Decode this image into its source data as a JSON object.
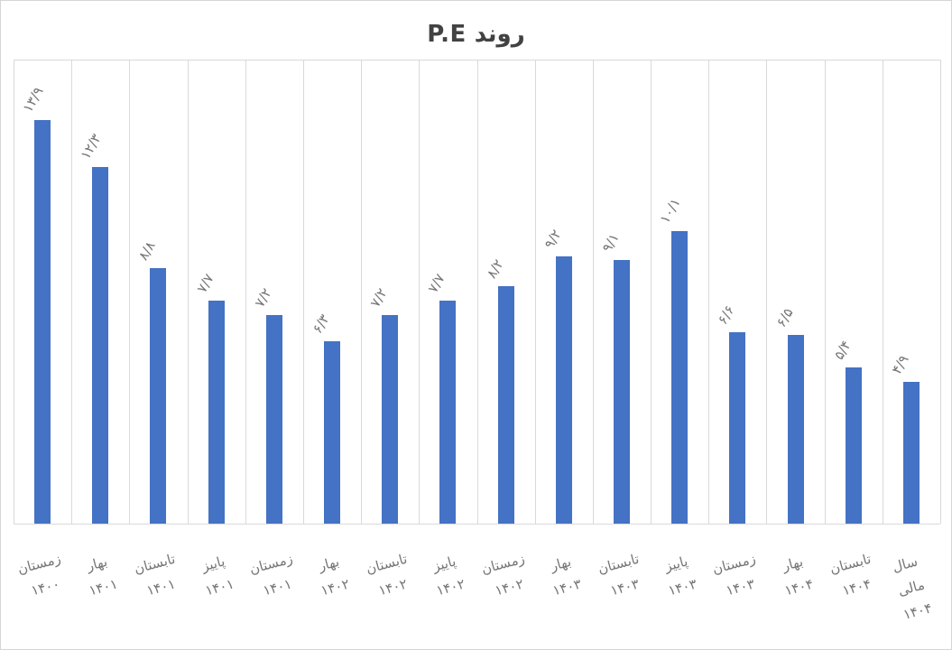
{
  "chart_data": {
    "type": "bar",
    "title": "روند P.E",
    "xlabel": "",
    "ylabel": "",
    "legend": "none",
    "grid": "vertical-category-separators",
    "ylim": [
      0,
      16
    ],
    "categories": [
      "زمستان ۱۴۰۰",
      "بهار ۱۴۰۱",
      "تابستان ۱۴۰۱",
      "پاییز ۱۴۰۱",
      "زمستان ۱۴۰۱",
      "بهار ۱۴۰۲",
      "تابستان ۱۴۰۲",
      "پاییز ۱۴۰۲",
      "زمستان ۱۴۰۲",
      "بهار ۱۴۰۳",
      "تابستان ۱۴۰۳",
      "پاییز ۱۴۰۳",
      "زمستان ۱۴۰۳",
      "بهار ۱۴۰۴",
      "تابستان ۱۴۰۴",
      "سال مالی ۱۴۰۴"
    ],
    "category_lines": [
      [
        "زمستان",
        "۱۴۰۰"
      ],
      [
        "بهار",
        "۱۴۰۱"
      ],
      [
        "تابستان",
        "۱۴۰۱"
      ],
      [
        "پاییز",
        "۱۴۰۱"
      ],
      [
        "زمستان",
        "۱۴۰۱"
      ],
      [
        "بهار",
        "۱۴۰۲"
      ],
      [
        "تابستان",
        "۱۴۰۲"
      ],
      [
        "پاییز",
        "۱۴۰۲"
      ],
      [
        "زمستان",
        "۱۴۰۲"
      ],
      [
        "بهار",
        "۱۴۰۳"
      ],
      [
        "تابستان",
        "۱۴۰۳"
      ],
      [
        "پاییز",
        "۱۴۰۳"
      ],
      [
        "زمستان",
        "۱۴۰۳"
      ],
      [
        "بهار",
        "۱۴۰۴"
      ],
      [
        "تابستان",
        "۱۴۰۴"
      ],
      [
        "سال",
        "مالی",
        "۱۴۰۴"
      ]
    ],
    "values": [
      13.9,
      12.3,
      8.8,
      7.7,
      7.2,
      6.3,
      7.2,
      7.7,
      8.2,
      9.2,
      9.1,
      10.1,
      6.6,
      6.5,
      5.4,
      4.9
    ],
    "value_labels": [
      "۱۳/۹",
      "۱۲/۳",
      "۸/۸",
      "۷/۷",
      "۷/۲",
      "۶/۳",
      "۷/۲",
      "۷/۷",
      "۸/۲",
      "۹/۲",
      "۹/۱",
      "۱۰/۱",
      "۶/۶",
      "۶/۵",
      "۵/۴",
      "۴/۹"
    ],
    "colors": {
      "bar": "#4472C4",
      "gridline": "#D9D9D9",
      "label_text": "#767676",
      "title_text": "#424242",
      "chart_border": "#D6D6D6"
    }
  }
}
